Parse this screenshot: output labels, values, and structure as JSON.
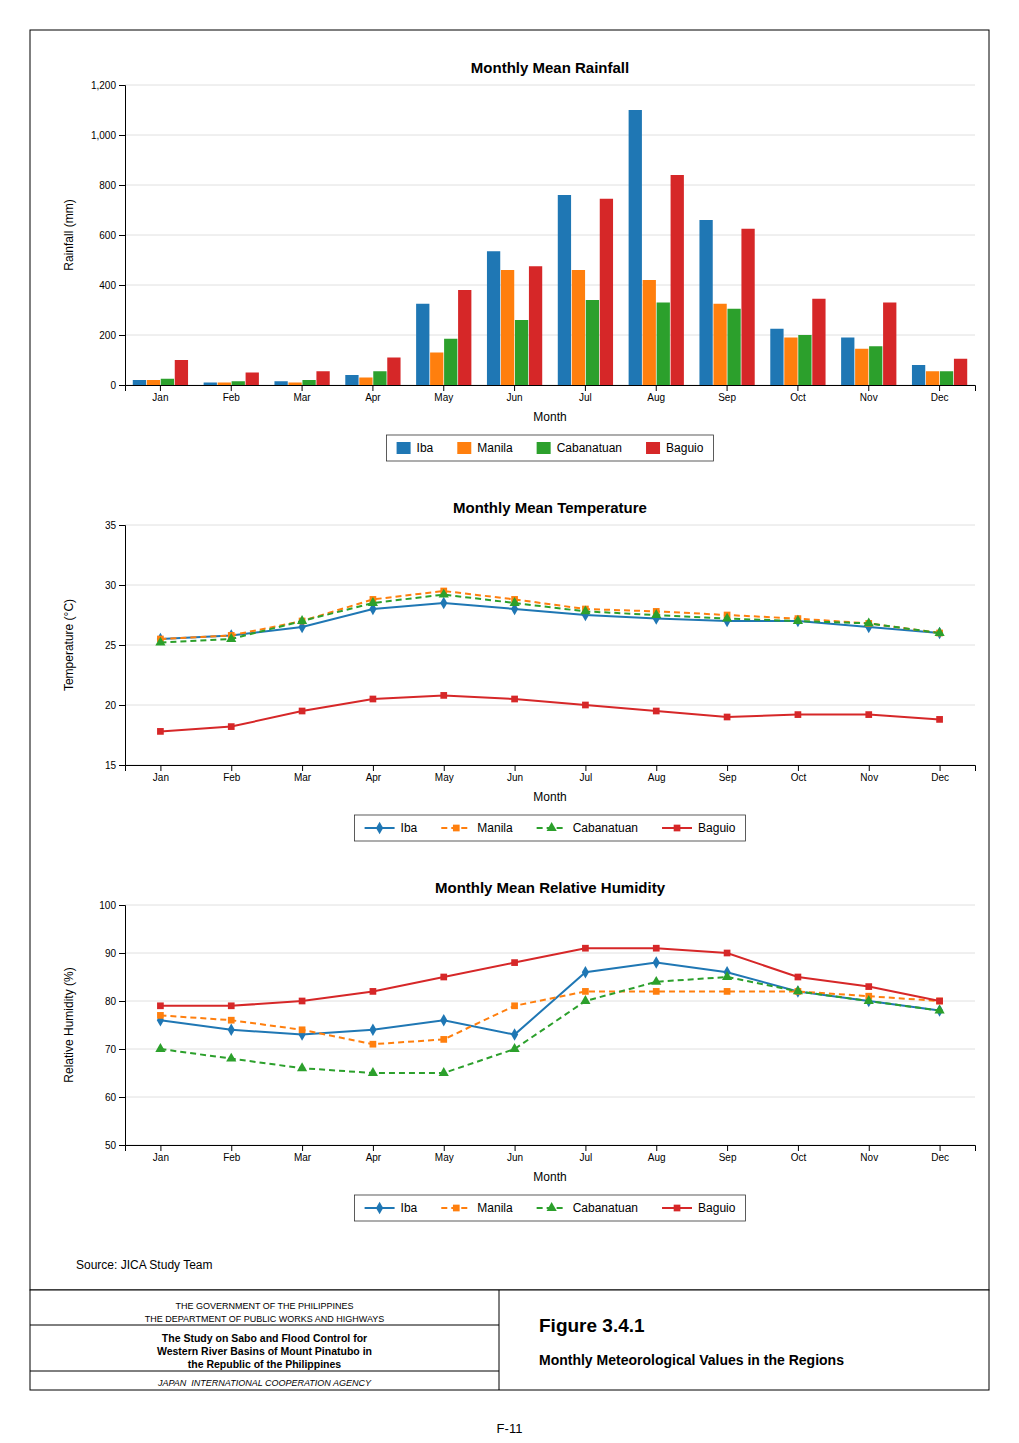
{
  "title": "Figure 3.4.1",
  "subtitle": "Monthly Meteorological Values in the Regions",
  "annotations": [
    "Source: JICA Study Team",
    "THE GOVERNMENT OF THE PHILIPPINES",
    "THE DEPARTMENT OF PUBLIC WORKS AND HIGHWAYS",
    "The Study on Sabo and Flood Control for",
    "Western River Basins of Mount Pinatubo in",
    "the Republic of the Philippines",
    "JAPAN  INTERNATIONAL COOPERATION AGENCY",
    "F-11"
  ],
  "chart_data": [
    {
      "type": "bar",
      "title": "Monthly Mean Rainfall",
      "xlabel": "Month",
      "ylabel": "Rainfall (mm)",
      "categories": [
        "Jan",
        "Feb",
        "Mar",
        "Apr",
        "May",
        "Jun",
        "Jul",
        "Aug",
        "Sep",
        "Oct",
        "Nov",
        "Dec"
      ],
      "series": [
        {
          "name": "Iba",
          "values": [
            20,
            10,
            15,
            40,
            325,
            535,
            760,
            1100,
            660,
            225,
            190,
            80
          ]
        },
        {
          "name": "Manila",
          "values": [
            20,
            10,
            10,
            30,
            130,
            460,
            460,
            420,
            325,
            190,
            145,
            55
          ]
        },
        {
          "name": "Cabanatuan",
          "values": [
            25,
            15,
            20,
            55,
            185,
            260,
            340,
            330,
            305,
            200,
            155,
            55
          ]
        },
        {
          "name": "Baguio",
          "values": [
            100,
            50,
            55,
            110,
            380,
            475,
            745,
            840,
            625,
            345,
            330,
            105
          ]
        }
      ],
      "ylim": [
        0,
        1200
      ],
      "yticks": [
        0,
        200,
        400,
        600,
        800,
        {
          "value": 1000,
          "label": "1,000"
        },
        {
          "value": 1200,
          "label": "1,200"
        }
      ],
      "grid": true,
      "legend": "bottom"
    },
    {
      "type": "line",
      "title": "Monthly Mean Temperature",
      "xlabel": "Month",
      "ylabel": "Temperature (°C)",
      "categories": [
        "Jan",
        "Feb",
        "Mar",
        "Apr",
        "May",
        "Jun",
        "Jul",
        "Aug",
        "Sep",
        "Oct",
        "Nov",
        "Dec"
      ],
      "series": [
        {
          "name": "Iba",
          "marker": "diamond",
          "line_style": "solid",
          "values": [
            25.5,
            25.8,
            26.5,
            28.0,
            28.5,
            28.0,
            27.5,
            27.2,
            27.0,
            27.0,
            26.5,
            26.0
          ]
        },
        {
          "name": "Manila",
          "marker": "square",
          "line_style": "dashed",
          "values": [
            25.5,
            25.8,
            27.0,
            28.8,
            29.5,
            28.8,
            28.0,
            27.8,
            27.5,
            27.2,
            26.8,
            26.0
          ]
        },
        {
          "name": "Cabanatuan",
          "marker": "triangle",
          "line_style": "dashed",
          "values": [
            25.2,
            25.5,
            27.0,
            28.5,
            29.2,
            28.5,
            27.8,
            27.5,
            27.2,
            27.0,
            26.8,
            26.0
          ]
        },
        {
          "name": "Baguio",
          "marker": "square",
          "line_style": "solid",
          "values": [
            17.8,
            18.2,
            19.5,
            20.5,
            20.8,
            20.5,
            20.0,
            19.5,
            19.0,
            19.2,
            19.2,
            18.8
          ]
        }
      ],
      "ylim": [
        15,
        35
      ],
      "yticks": [
        15,
        20,
        25,
        30,
        35
      ],
      "grid": true,
      "legend": "bottom"
    },
    {
      "type": "line",
      "title": "Monthly Mean Relative Humidity",
      "xlabel": "Month",
      "ylabel": "Relative Humidity (%)",
      "categories": [
        "Jan",
        "Feb",
        "Mar",
        "Apr",
        "May",
        "Jun",
        "Jul",
        "Aug",
        "Sep",
        "Oct",
        "Nov",
        "Dec"
      ],
      "series": [
        {
          "name": "Iba",
          "marker": "diamond",
          "line_style": "solid",
          "values": [
            76,
            74,
            73,
            74,
            76,
            73,
            86,
            88,
            86,
            82,
            80,
            78
          ]
        },
        {
          "name": "Manila",
          "marker": "square",
          "line_style": "dashed",
          "values": [
            77,
            76,
            74,
            71,
            72,
            79,
            82,
            82,
            82,
            82,
            81,
            80
          ]
        },
        {
          "name": "Cabanatuan",
          "marker": "triangle",
          "line_style": "dashed",
          "values": [
            70,
            68,
            66,
            65,
            65,
            70,
            80,
            84,
            85,
            82,
            80,
            78
          ]
        },
        {
          "name": "Baguio",
          "marker": "square",
          "line_style": "solid",
          "values": [
            79,
            79,
            80,
            82,
            85,
            88,
            91,
            91,
            90,
            85,
            83,
            80
          ]
        }
      ],
      "ylim": [
        50,
        100
      ],
      "yticks": [
        50,
        60,
        70,
        80,
        90,
        100
      ],
      "grid": true,
      "legend": "bottom"
    }
  ]
}
